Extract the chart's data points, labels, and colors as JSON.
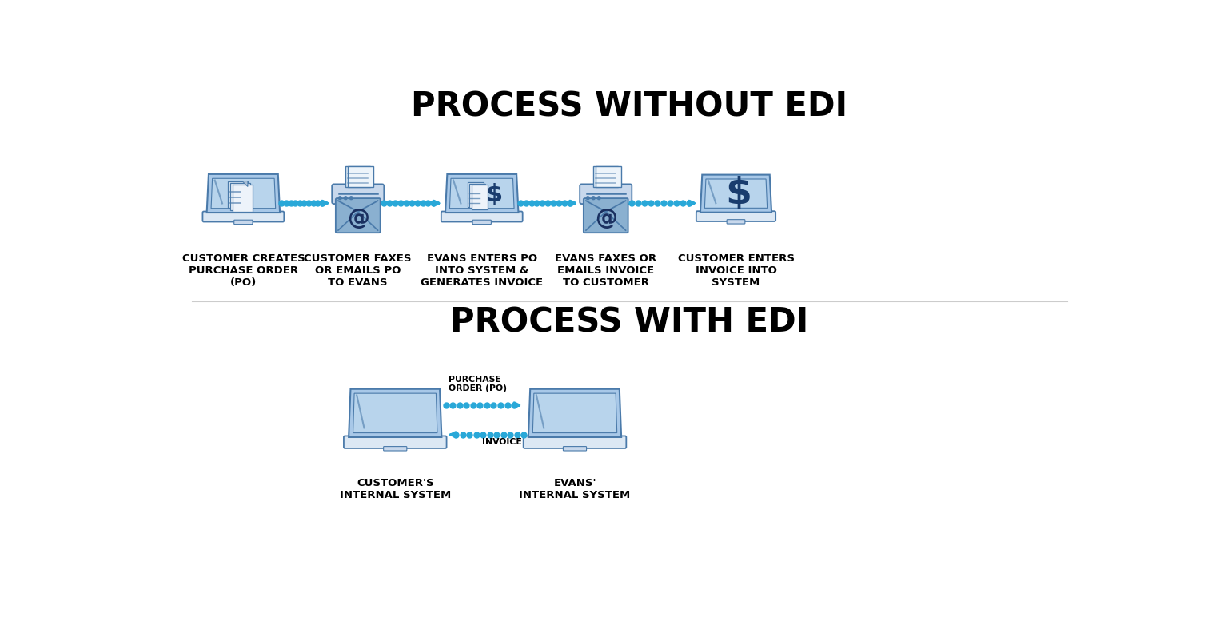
{
  "title_top": "PROCESS WITHOUT EDI",
  "title_bottom": "PROCESS WITH EDI",
  "bg_color": "#ffffff",
  "title_color": "#000000",
  "title_fontsize": 28,
  "label_fontsize": 9.5,
  "laptop_fill": "#a8c8e8",
  "laptop_stroke": "#4a7aaa",
  "arrow_color": "#29a8d8",
  "step1_label": "CUSTOMER CREATES\nPURCHASE ORDER\n(PO)",
  "step2_label": "CUSTOMER FAXES\nOR EMAILS PO\nTO EVANS",
  "step3_label": "EVANS ENTERS PO\nINTO SYSTEM &\nGENERATES INVOICE",
  "step4_label": "EVANS FAXES OR\nEMAILS INVOICE\nTO CUSTOMER",
  "step5_label": "CUSTOMER ENTERS\nINVOICE INTO\nSYSTEM",
  "edi_label_left": "CUSTOMER'S\nINTERNAL SYSTEM",
  "edi_label_right": "EVANS'\nINTERNAL SYSTEM",
  "po_arrow_label": "PURCHASE\nORDER (PO)",
  "invoice_label": "INVOICE"
}
